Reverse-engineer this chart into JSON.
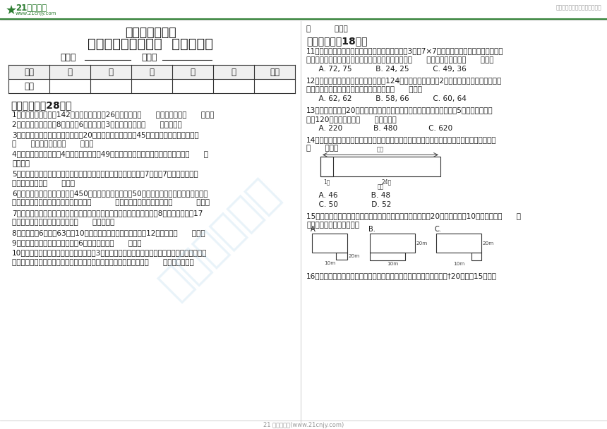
{
  "background_color": "#ffffff",
  "top_right_text": "中小学教育资源及组卷应用平台",
  "title1": "苏教版小学数学",
  "title2": "四年级下册第五单元  质量调研卷",
  "name_label": "姓名：",
  "class_label": "班级：",
  "table_headers": [
    "题号",
    "一",
    "二",
    "三",
    "四",
    "五",
    "总分"
  ],
  "table_row_label": "得分",
  "section1_title": "一、填空题（28分）",
  "section1_items": [
    "1．足球和篮球一共有142个，篮球比足球少26个，篮球有（      ）个，足球有（      ）个。",
    "2．一个长方形的长是8米，宽是6米，长增加3米，面积就增加（      ）平方米。",
    "3．在停车场停有自行车和三轮车內20辆，两种车的车轮共有45个，停车场里停的三轮车有\n（      ）辆，自行车有（      ）辆。",
    "4．一个长方形，长缩短4米，就变成面积是49平方米的正方形，原来长方形的面积是（      ）\n平方米。",
    "5．运动会开幕式上，「花环」队同学在操场上排成方队表演，每行7人，有7行，「花环」方\n队最外边一圈有（      ）人。",
    "6．甲、乙两个书架上共有图书450本，如果从甲书架上取50本图书放到乙书架上，两个书架的\n图书就同样多了。甲书架上原来有图书（          ）本，乙书架上原来有图书（          ）本。",
    "7．同学们在试验田种葫芦和玉米，种葫芦的面积比试验田面积的一半还多8平方米，剩下的17\n平方米种玉米，种葫芦的面积是（      ）平方米。",
    "8．一个时钟6时整敆63下，10秒敌完，请你想一想，这个钟敌12下，需要（      ）秒。",
    "9．一个表演方阵，每排四人，有6行，最外圈有（      ）人。",
    "10．学校春季运动会开幕式上，四年级有3个方阵参加了团体操表演，每个方阵四行，每行四人，\n最外圈的同学穿白色衣服，其余的穿红色衣服，一共要准备白色衣服（      ）套，红色衣服"
  ],
  "section2_title": "二、选择题（18分）",
  "right_top_text": "（          ）套。",
  "section2_items": [
    "11．国庆节到了，环卫工人把一盆盆的菊花摆成了3个「7×7」的方阵布置人民广场，最外圈用\n红色的菊花，其余用黄色的菊花。要准备红色的菊花（      ）盆，黄色的菊花（      ）盆。",
    "    A. 72, 75          B. 24, 25          C. 49, 36",
    "12．四年级一班和四年级二班共有学生124人，从四年级二班调2人到四年级一班后，两班的生\n同样多，四年级一班和四年级二班原来各有（      ）人。",
    "    A. 62, 62          B. 58, 66          C. 60, 64",
    "13．四年级同学站20行排队做操，每行人数相等，如果五年级再站同样的5行，就比原来增\n加了120人，四年级有（      ）人做操。",
    "    A. 220             B. 480             C. 620",
    "14．王红画了一幅线段图（如图）来求一本故事书的总页数，从图中可以看出故事书的总页数是\n（      ）页。",
    "    A. 46              B. 48",
    "    C. 50              D. 52",
    "15．新庄小学操场原来是一个长方形，扩建校园时，长增加了20米，宽增加了10米，下面图（      ）\n可以表示操场的变化情况。",
    "16．手机维修部来了三位顾客，根据他们手机的损坏程度修理分别需要†20分钟、15分钟、"
  ],
  "footer_text": "21 世纪教育网(www.21cnjy.com)"
}
